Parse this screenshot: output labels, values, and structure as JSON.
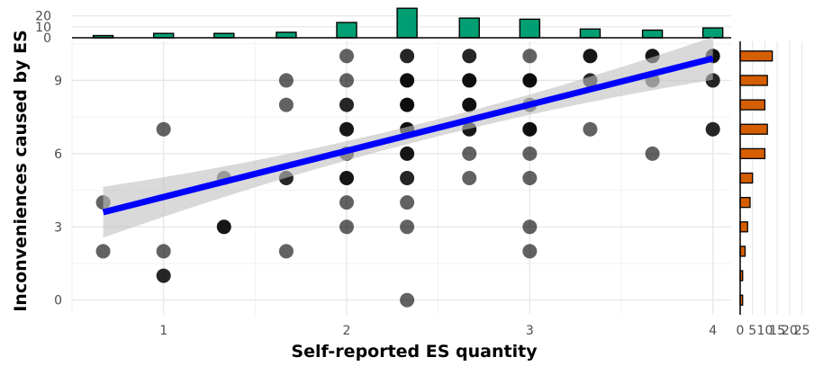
{
  "chart_data": [
    {
      "type": "scatter",
      "xlabel": "Self-reported ES quantity",
      "ylabel": "Inconveniences caused by ES",
      "xlim": [
        0.5,
        4.1
      ],
      "ylim": [
        -0.6,
        10.6
      ],
      "x_ticks": [
        1,
        2,
        3,
        4
      ],
      "y_ticks": [
        0,
        3,
        6,
        9
      ],
      "grid": true,
      "points": [
        {
          "x": 0.67,
          "y": 4,
          "count": 2
        },
        {
          "x": 0.67,
          "y": 2,
          "count": 2
        },
        {
          "x": 1,
          "y": 7,
          "count": 2
        },
        {
          "x": 1,
          "y": 2,
          "count": 2
        },
        {
          "x": 1,
          "y": 1,
          "count": 4
        },
        {
          "x": 1.33,
          "y": 5,
          "count": 2
        },
        {
          "x": 1.33,
          "y": 3,
          "count": 5
        },
        {
          "x": 1.67,
          "y": 9,
          "count": 2
        },
        {
          "x": 1.67,
          "y": 8,
          "count": 2
        },
        {
          "x": 1.67,
          "y": 5,
          "count": 4
        },
        {
          "x": 1.67,
          "y": 2,
          "count": 2
        },
        {
          "x": 2,
          "y": 10,
          "count": 2
        },
        {
          "x": 2,
          "y": 9,
          "count": 2
        },
        {
          "x": 2,
          "y": 8,
          "count": 4
        },
        {
          "x": 2,
          "y": 7,
          "count": 5
        },
        {
          "x": 2,
          "y": 6,
          "count": 3
        },
        {
          "x": 2,
          "y": 5,
          "count": 5
        },
        {
          "x": 2,
          "y": 4,
          "count": 2
        },
        {
          "x": 2,
          "y": 3,
          "count": 2
        },
        {
          "x": 2.33,
          "y": 10,
          "count": 4
        },
        {
          "x": 2.33,
          "y": 9,
          "count": 6
        },
        {
          "x": 2.33,
          "y": 8,
          "count": 7
        },
        {
          "x": 2.33,
          "y": 7,
          "count": 6
        },
        {
          "x": 2.33,
          "y": 6,
          "count": 5
        },
        {
          "x": 2.33,
          "y": 5,
          "count": 4
        },
        {
          "x": 2.33,
          "y": 4,
          "count": 2
        },
        {
          "x": 2.33,
          "y": 3,
          "count": 2
        },
        {
          "x": 2.33,
          "y": 0,
          "count": 2
        },
        {
          "x": 2.67,
          "y": 10,
          "count": 4
        },
        {
          "x": 2.67,
          "y": 9,
          "count": 6
        },
        {
          "x": 2.67,
          "y": 8,
          "count": 6
        },
        {
          "x": 2.67,
          "y": 7,
          "count": 5
        },
        {
          "x": 2.67,
          "y": 6,
          "count": 2
        },
        {
          "x": 2.67,
          "y": 5,
          "count": 2
        },
        {
          "x": 3,
          "y": 10,
          "count": 2
        },
        {
          "x": 3,
          "y": 9,
          "count": 7
        },
        {
          "x": 3,
          "y": 8,
          "count": 2
        },
        {
          "x": 3,
          "y": 7,
          "count": 6
        },
        {
          "x": 3,
          "y": 6,
          "count": 2
        },
        {
          "x": 3,
          "y": 5,
          "count": 2
        },
        {
          "x": 3,
          "y": 3,
          "count": 2
        },
        {
          "x": 3,
          "y": 2,
          "count": 2
        },
        {
          "x": 3.33,
          "y": 10,
          "count": 5
        },
        {
          "x": 3.33,
          "y": 9,
          "count": 4
        },
        {
          "x": 3.33,
          "y": 7,
          "count": 2
        },
        {
          "x": 3.67,
          "y": 10,
          "count": 5
        },
        {
          "x": 3.67,
          "y": 9,
          "count": 2
        },
        {
          "x": 3.67,
          "y": 6,
          "count": 2
        },
        {
          "x": 4,
          "y": 10,
          "count": 6
        },
        {
          "x": 4,
          "y": 9,
          "count": 4
        },
        {
          "x": 4,
          "y": 7,
          "count": 4
        }
      ],
      "regression": {
        "x": [
          0.67,
          4.0
        ],
        "y": [
          3.6,
          9.9
        ],
        "color": "#0000ff",
        "ci_color": "#bfbfbf"
      }
    },
    {
      "type": "bar",
      "position": "top",
      "x": [
        0.67,
        1,
        1.33,
        1.67,
        2,
        2.33,
        2.67,
        3,
        3.33,
        3.67,
        4
      ],
      "values": [
        2,
        4,
        4,
        5,
        14,
        27,
        18,
        17,
        8,
        7,
        9
      ],
      "ticks": [
        0,
        10,
        20
      ],
      "color": "#009e73"
    },
    {
      "type": "bar",
      "position": "right",
      "y": [
        0,
        1,
        2,
        3,
        4,
        5,
        6,
        7,
        8,
        9,
        10
      ],
      "values": [
        1,
        1,
        2,
        3,
        4,
        5,
        10,
        11,
        10,
        11,
        13
      ],
      "x_values": [
        1,
        1,
        2,
        3,
        4,
        5,
        10,
        11,
        10,
        11,
        13
      ],
      "ticks": [
        0,
        5,
        10,
        15,
        20,
        25
      ],
      "tick_labels": [
        "0",
        "5",
        "10",
        "15",
        "20",
        "25"
      ],
      "color": "#d55e00"
    }
  ]
}
